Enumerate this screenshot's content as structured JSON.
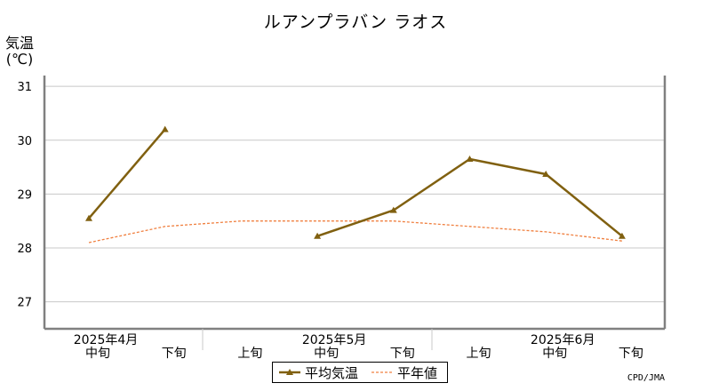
{
  "title": "ルアンプラバン ラオス",
  "ylabel_line1": "気温",
  "ylabel_line2": "(℃)",
  "credit": "CPD/JMA",
  "chart_data": {
    "type": "line",
    "categories": [
      "中旬",
      "下旬",
      "上旬",
      "中旬",
      "下旬",
      "上旬",
      "中旬",
      "下旬"
    ],
    "month_labels": [
      {
        "label": "2025年4月",
        "under_index": 0
      },
      {
        "label": "2025年5月",
        "under_index": 3
      },
      {
        "label": "2025年6月",
        "under_index": 6
      }
    ],
    "ylim": [
      26.5,
      31.2
    ],
    "yticks": [
      27,
      28,
      29,
      30,
      31
    ],
    "grid": true,
    "legend_position": "bottom-center",
    "series": [
      {
        "name": "平均気温",
        "color": "#806010",
        "style": "solid-triangle",
        "values": [
          28.55,
          30.2,
          null,
          28.22,
          28.7,
          29.65,
          29.37,
          28.22
        ]
      },
      {
        "name": "平年値",
        "color": "#f08040",
        "style": "dashed",
        "values": [
          28.1,
          28.4,
          28.5,
          28.5,
          28.5,
          28.4,
          28.3,
          28.13
        ]
      }
    ]
  }
}
